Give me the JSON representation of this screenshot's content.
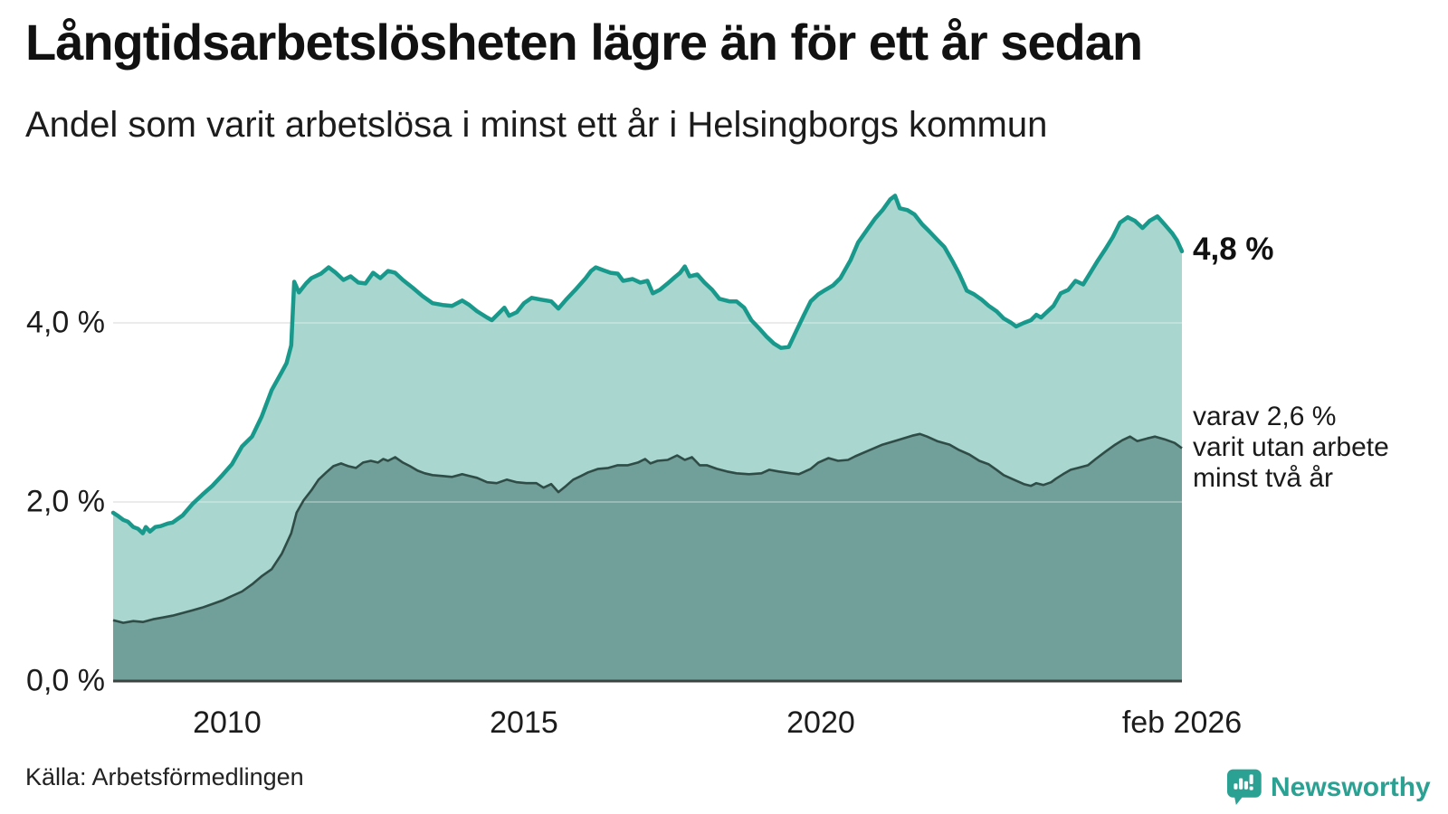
{
  "header": {
    "title": "Långtidsarbetslösheten lägre än för ett år sedan",
    "subtitle": "Andel som varit arbetslösa i minst ett år i Helsingborgs kommun"
  },
  "annotations": {
    "latest_total": "4,8 %",
    "twoyr_line1": "varav 2,6 %",
    "twoyr_line2": "varit utan arbete",
    "twoyr_line3": "minst två år"
  },
  "footer": {
    "source": "Källa: Arbetsförmedlingen",
    "brand": "Newsworthy"
  },
  "colors": {
    "total_line": "#18998b",
    "total_fill": "#a9d6cf",
    "twoyr_line": "#2f4c47",
    "twoyr_fill": "#70a099",
    "gridline": "#d9d9d9",
    "baseline": "#3c4442",
    "brand_teal": "#2aa192"
  },
  "chart_data": {
    "type": "area",
    "title": "Långtidsarbetslösheten lägre än för ett år sedan",
    "subtitle": "Andel som varit arbetslösa i minst ett år i Helsingborgs kommun",
    "unit": "%",
    "grid": true,
    "x_axis": {
      "range": [
        2008.08,
        2026.083
      ],
      "ticks": [
        {
          "t": 2010,
          "label": "2010"
        },
        {
          "t": 2015,
          "label": "2015"
        },
        {
          "t": 2020,
          "label": "2020"
        },
        {
          "t": 2026.083,
          "label": "feb 2026"
        }
      ]
    },
    "y_axis": {
      "range": [
        0,
        5.6
      ],
      "ticks": [
        {
          "v": 0,
          "label": "0,0 %"
        },
        {
          "v": 2,
          "label": "2,0 %"
        },
        {
          "v": 4,
          "label": "4,0 %"
        }
      ]
    },
    "series": [
      {
        "name": "Arbetslösa minst ett år",
        "end_value_label": "4,8 %",
        "points": [
          [
            2008.08,
            1.88
          ],
          [
            2008.17,
            1.84
          ],
          [
            2008.25,
            1.8
          ],
          [
            2008.33,
            1.78
          ],
          [
            2008.42,
            1.72
          ],
          [
            2008.5,
            1.7
          ],
          [
            2008.58,
            1.65
          ],
          [
            2008.63,
            1.72
          ],
          [
            2008.7,
            1.67
          ],
          [
            2008.79,
            1.72
          ],
          [
            2008.88,
            1.73
          ],
          [
            2009.0,
            1.76
          ],
          [
            2009.08,
            1.77
          ],
          [
            2009.25,
            1.85
          ],
          [
            2009.42,
            1.98
          ],
          [
            2009.58,
            2.08
          ],
          [
            2009.75,
            2.18
          ],
          [
            2009.92,
            2.3
          ],
          [
            2010.08,
            2.42
          ],
          [
            2010.25,
            2.62
          ],
          [
            2010.42,
            2.73
          ],
          [
            2010.58,
            2.95
          ],
          [
            2010.75,
            3.25
          ],
          [
            2010.92,
            3.45
          ],
          [
            2011.0,
            3.55
          ],
          [
            2011.08,
            3.75
          ],
          [
            2011.13,
            4.46
          ],
          [
            2011.21,
            4.34
          ],
          [
            2011.33,
            4.44
          ],
          [
            2011.42,
            4.5
          ],
          [
            2011.58,
            4.55
          ],
          [
            2011.71,
            4.62
          ],
          [
            2011.83,
            4.56
          ],
          [
            2011.96,
            4.48
          ],
          [
            2012.08,
            4.52
          ],
          [
            2012.21,
            4.45
          ],
          [
            2012.33,
            4.44
          ],
          [
            2012.46,
            4.56
          ],
          [
            2012.58,
            4.5
          ],
          [
            2012.71,
            4.58
          ],
          [
            2012.83,
            4.56
          ],
          [
            2012.96,
            4.48
          ],
          [
            2013.13,
            4.39
          ],
          [
            2013.29,
            4.3
          ],
          [
            2013.46,
            4.22
          ],
          [
            2013.63,
            4.2
          ],
          [
            2013.79,
            4.19
          ],
          [
            2013.96,
            4.25
          ],
          [
            2014.08,
            4.2
          ],
          [
            2014.21,
            4.13
          ],
          [
            2014.38,
            4.06
          ],
          [
            2014.46,
            4.03
          ],
          [
            2014.58,
            4.11
          ],
          [
            2014.67,
            4.17
          ],
          [
            2014.75,
            4.08
          ],
          [
            2014.88,
            4.12
          ],
          [
            2015.0,
            4.22
          ],
          [
            2015.13,
            4.28
          ],
          [
            2015.29,
            4.26
          ],
          [
            2015.46,
            4.24
          ],
          [
            2015.58,
            4.16
          ],
          [
            2015.71,
            4.26
          ],
          [
            2015.88,
            4.38
          ],
          [
            2016.04,
            4.5
          ],
          [
            2016.13,
            4.58
          ],
          [
            2016.21,
            4.62
          ],
          [
            2016.33,
            4.59
          ],
          [
            2016.46,
            4.56
          ],
          [
            2016.58,
            4.55
          ],
          [
            2016.67,
            4.47
          ],
          [
            2016.83,
            4.49
          ],
          [
            2016.96,
            4.45
          ],
          [
            2017.08,
            4.47
          ],
          [
            2017.17,
            4.33
          ],
          [
            2017.29,
            4.37
          ],
          [
            2017.42,
            4.44
          ],
          [
            2017.54,
            4.51
          ],
          [
            2017.63,
            4.56
          ],
          [
            2017.71,
            4.63
          ],
          [
            2017.79,
            4.52
          ],
          [
            2017.92,
            4.54
          ],
          [
            2018.04,
            4.45
          ],
          [
            2018.17,
            4.37
          ],
          [
            2018.29,
            4.27
          ],
          [
            2018.46,
            4.24
          ],
          [
            2018.58,
            4.24
          ],
          [
            2018.71,
            4.17
          ],
          [
            2018.83,
            4.03
          ],
          [
            2018.96,
            3.94
          ],
          [
            2019.08,
            3.85
          ],
          [
            2019.21,
            3.77
          ],
          [
            2019.33,
            3.72
          ],
          [
            2019.46,
            3.73
          ],
          [
            2019.58,
            3.9
          ],
          [
            2019.71,
            4.08
          ],
          [
            2019.83,
            4.24
          ],
          [
            2019.96,
            4.32
          ],
          [
            2020.08,
            4.37
          ],
          [
            2020.21,
            4.42
          ],
          [
            2020.33,
            4.5
          ],
          [
            2020.5,
            4.7
          ],
          [
            2020.63,
            4.9
          ],
          [
            2020.79,
            5.05
          ],
          [
            2020.92,
            5.17
          ],
          [
            2021.04,
            5.26
          ],
          [
            2021.17,
            5.38
          ],
          [
            2021.25,
            5.42
          ],
          [
            2021.33,
            5.28
          ],
          [
            2021.46,
            5.26
          ],
          [
            2021.58,
            5.21
          ],
          [
            2021.71,
            5.1
          ],
          [
            2021.83,
            5.02
          ],
          [
            2021.96,
            4.93
          ],
          [
            2022.08,
            4.85
          ],
          [
            2022.21,
            4.7
          ],
          [
            2022.33,
            4.55
          ],
          [
            2022.46,
            4.36
          ],
          [
            2022.58,
            4.32
          ],
          [
            2022.71,
            4.26
          ],
          [
            2022.83,
            4.19
          ],
          [
            2022.96,
            4.13
          ],
          [
            2023.08,
            4.05
          ],
          [
            2023.21,
            4.0
          ],
          [
            2023.29,
            3.96
          ],
          [
            2023.42,
            4.0
          ],
          [
            2023.54,
            4.03
          ],
          [
            2023.63,
            4.09
          ],
          [
            2023.71,
            4.06
          ],
          [
            2023.79,
            4.11
          ],
          [
            2023.92,
            4.19
          ],
          [
            2024.04,
            4.33
          ],
          [
            2024.17,
            4.37
          ],
          [
            2024.29,
            4.47
          ],
          [
            2024.42,
            4.43
          ],
          [
            2024.54,
            4.56
          ],
          [
            2024.67,
            4.7
          ],
          [
            2024.79,
            4.82
          ],
          [
            2024.92,
            4.96
          ],
          [
            2025.04,
            5.12
          ],
          [
            2025.17,
            5.18
          ],
          [
            2025.29,
            5.14
          ],
          [
            2025.42,
            5.06
          ],
          [
            2025.54,
            5.14
          ],
          [
            2025.67,
            5.19
          ],
          [
            2025.79,
            5.1
          ],
          [
            2025.92,
            5.0
          ],
          [
            2026.0,
            4.92
          ],
          [
            2026.083,
            4.8
          ]
        ]
      },
      {
        "name": "varav utan arbete minst två år",
        "end_value_label": "2,6 %",
        "points": [
          [
            2008.08,
            0.68
          ],
          [
            2008.25,
            0.65
          ],
          [
            2008.42,
            0.67
          ],
          [
            2008.58,
            0.66
          ],
          [
            2008.75,
            0.69
          ],
          [
            2008.92,
            0.71
          ],
          [
            2009.08,
            0.73
          ],
          [
            2009.25,
            0.76
          ],
          [
            2009.42,
            0.79
          ],
          [
            2009.58,
            0.82
          ],
          [
            2009.75,
            0.86
          ],
          [
            2009.92,
            0.9
          ],
          [
            2010.08,
            0.95
          ],
          [
            2010.25,
            1.0
          ],
          [
            2010.42,
            1.08
          ],
          [
            2010.58,
            1.17
          ],
          [
            2010.75,
            1.25
          ],
          [
            2010.92,
            1.42
          ],
          [
            2011.08,
            1.65
          ],
          [
            2011.17,
            1.88
          ],
          [
            2011.29,
            2.02
          ],
          [
            2011.42,
            2.13
          ],
          [
            2011.54,
            2.25
          ],
          [
            2011.67,
            2.33
          ],
          [
            2011.79,
            2.4
          ],
          [
            2011.92,
            2.43
          ],
          [
            2012.04,
            2.4
          ],
          [
            2012.17,
            2.38
          ],
          [
            2012.29,
            2.44
          ],
          [
            2012.42,
            2.46
          ],
          [
            2012.54,
            2.44
          ],
          [
            2012.63,
            2.48
          ],
          [
            2012.71,
            2.46
          ],
          [
            2012.83,
            2.5
          ],
          [
            2012.96,
            2.44
          ],
          [
            2013.08,
            2.4
          ],
          [
            2013.21,
            2.35
          ],
          [
            2013.33,
            2.32
          ],
          [
            2013.46,
            2.3
          ],
          [
            2013.63,
            2.29
          ],
          [
            2013.79,
            2.28
          ],
          [
            2013.96,
            2.31
          ],
          [
            2014.08,
            2.29
          ],
          [
            2014.21,
            2.27
          ],
          [
            2014.38,
            2.22
          ],
          [
            2014.54,
            2.21
          ],
          [
            2014.71,
            2.25
          ],
          [
            2014.88,
            2.22
          ],
          [
            2015.04,
            2.21
          ],
          [
            2015.21,
            2.21
          ],
          [
            2015.33,
            2.16
          ],
          [
            2015.46,
            2.2
          ],
          [
            2015.58,
            2.11
          ],
          [
            2015.71,
            2.18
          ],
          [
            2015.83,
            2.25
          ],
          [
            2015.96,
            2.29
          ],
          [
            2016.08,
            2.33
          ],
          [
            2016.25,
            2.37
          ],
          [
            2016.42,
            2.38
          ],
          [
            2016.58,
            2.41
          ],
          [
            2016.75,
            2.41
          ],
          [
            2016.92,
            2.44
          ],
          [
            2017.04,
            2.48
          ],
          [
            2017.13,
            2.43
          ],
          [
            2017.25,
            2.46
          ],
          [
            2017.42,
            2.47
          ],
          [
            2017.58,
            2.52
          ],
          [
            2017.71,
            2.47
          ],
          [
            2017.83,
            2.5
          ],
          [
            2017.96,
            2.41
          ],
          [
            2018.08,
            2.41
          ],
          [
            2018.25,
            2.37
          ],
          [
            2018.42,
            2.34
          ],
          [
            2018.58,
            2.32
          ],
          [
            2018.79,
            2.31
          ],
          [
            2019.0,
            2.32
          ],
          [
            2019.13,
            2.36
          ],
          [
            2019.29,
            2.34
          ],
          [
            2019.5,
            2.32
          ],
          [
            2019.63,
            2.31
          ],
          [
            2019.83,
            2.37
          ],
          [
            2019.96,
            2.44
          ],
          [
            2020.13,
            2.49
          ],
          [
            2020.29,
            2.46
          ],
          [
            2020.46,
            2.47
          ],
          [
            2020.58,
            2.51
          ],
          [
            2020.79,
            2.57
          ],
          [
            2021.04,
            2.64
          ],
          [
            2021.29,
            2.69
          ],
          [
            2021.54,
            2.74
          ],
          [
            2021.67,
            2.76
          ],
          [
            2021.79,
            2.73
          ],
          [
            2021.96,
            2.68
          ],
          [
            2022.17,
            2.64
          ],
          [
            2022.33,
            2.58
          ],
          [
            2022.5,
            2.53
          ],
          [
            2022.67,
            2.46
          ],
          [
            2022.83,
            2.42
          ],
          [
            2022.96,
            2.36
          ],
          [
            2023.08,
            2.3
          ],
          [
            2023.25,
            2.25
          ],
          [
            2023.42,
            2.2
          ],
          [
            2023.54,
            2.18
          ],
          [
            2023.63,
            2.21
          ],
          [
            2023.75,
            2.19
          ],
          [
            2023.88,
            2.22
          ],
          [
            2023.96,
            2.26
          ],
          [
            2024.08,
            2.31
          ],
          [
            2024.21,
            2.36
          ],
          [
            2024.33,
            2.38
          ],
          [
            2024.5,
            2.41
          ],
          [
            2024.63,
            2.48
          ],
          [
            2024.79,
            2.56
          ],
          [
            2024.96,
            2.64
          ],
          [
            2025.08,
            2.69
          ],
          [
            2025.21,
            2.73
          ],
          [
            2025.33,
            2.68
          ],
          [
            2025.5,
            2.71
          ],
          [
            2025.63,
            2.73
          ],
          [
            2025.79,
            2.7
          ],
          [
            2025.96,
            2.66
          ],
          [
            2026.083,
            2.6
          ]
        ]
      }
    ]
  }
}
